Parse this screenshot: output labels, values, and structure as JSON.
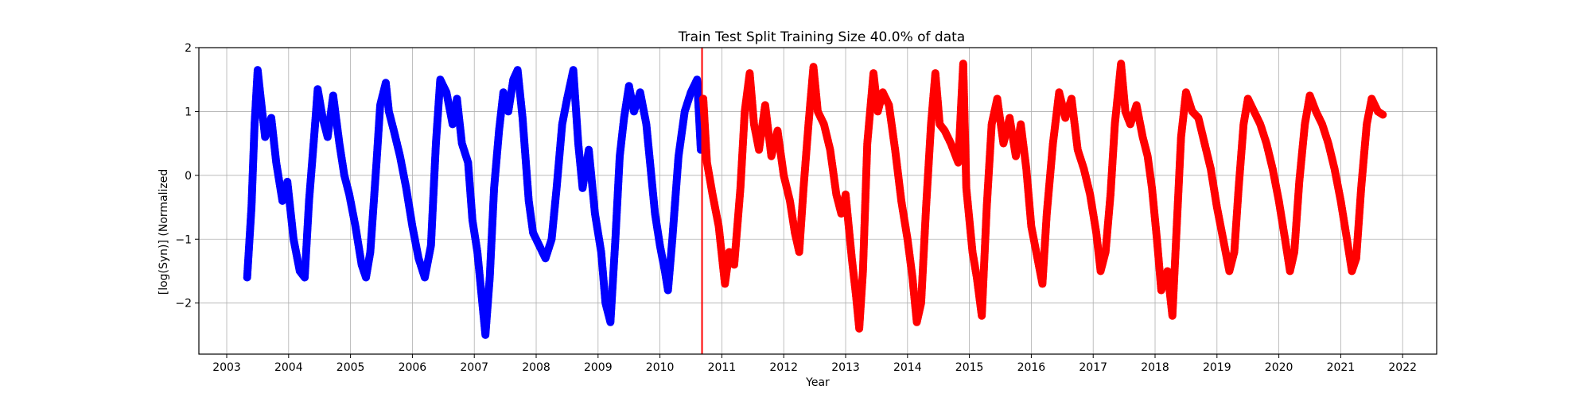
{
  "chart_data": {
    "type": "scatter",
    "title": "Train Test Split Training Size 40.0% of data",
    "xlabel": "Year",
    "ylabel": "[log(Syn)] (Normalized",
    "xlim": [
      2002.55,
      2022.55
    ],
    "ylim": [
      -2.8,
      2.0
    ],
    "x_ticks": [
      2003,
      2004,
      2005,
      2006,
      2007,
      2008,
      2009,
      2010,
      2011,
      2012,
      2013,
      2014,
      2015,
      2016,
      2017,
      2018,
      2019,
      2020,
      2021,
      2022
    ],
    "y_ticks": [
      -2,
      -1,
      0,
      1,
      2
    ],
    "grid": true,
    "split_year": 2010.68,
    "split_line_color": "#ff0000",
    "series": [
      {
        "color": "#0000ff",
        "points": [
          [
            2003.33,
            -1.6
          ],
          [
            2003.4,
            -0.5
          ],
          [
            2003.45,
            0.8
          ],
          [
            2003.5,
            1.65
          ],
          [
            2003.55,
            1.2
          ],
          [
            2003.62,
            0.6
          ],
          [
            2003.72,
            0.9
          ],
          [
            2003.8,
            0.2
          ],
          [
            2003.9,
            -0.4
          ],
          [
            2003.98,
            -0.1
          ],
          [
            2004.08,
            -1.0
          ],
          [
            2004.18,
            -1.5
          ],
          [
            2004.26,
            -1.6
          ],
          [
            2004.33,
            -0.4
          ],
          [
            2004.42,
            0.7
          ],
          [
            2004.47,
            1.35
          ],
          [
            2004.55,
            0.9
          ],
          [
            2004.63,
            0.6
          ],
          [
            2004.72,
            1.25
          ],
          [
            2004.82,
            0.5
          ],
          [
            2004.9,
            0.0
          ],
          [
            2004.98,
            -0.3
          ],
          [
            2005.08,
            -0.8
          ],
          [
            2005.18,
            -1.4
          ],
          [
            2005.25,
            -1.6
          ],
          [
            2005.32,
            -1.2
          ],
          [
            2005.42,
            0.2
          ],
          [
            2005.48,
            1.1
          ],
          [
            2005.57,
            1.45
          ],
          [
            2005.62,
            1.0
          ],
          [
            2005.7,
            0.7
          ],
          [
            2005.8,
            0.3
          ],
          [
            2005.9,
            -0.2
          ],
          [
            2006.0,
            -0.8
          ],
          [
            2006.1,
            -1.3
          ],
          [
            2006.2,
            -1.6
          ],
          [
            2006.3,
            -1.1
          ],
          [
            2006.38,
            0.5
          ],
          [
            2006.45,
            1.5
          ],
          [
            2006.55,
            1.3
          ],
          [
            2006.65,
            0.8
          ],
          [
            2006.72,
            1.2
          ],
          [
            2006.8,
            0.5
          ],
          [
            2006.9,
            0.2
          ],
          [
            2006.97,
            -0.7
          ],
          [
            2007.05,
            -1.2
          ],
          [
            2007.12,
            -1.9
          ],
          [
            2007.18,
            -2.5
          ],
          [
            2007.25,
            -1.6
          ],
          [
            2007.32,
            -0.2
          ],
          [
            2007.4,
            0.7
          ],
          [
            2007.47,
            1.3
          ],
          [
            2007.55,
            1.0
          ],
          [
            2007.63,
            1.5
          ],
          [
            2007.7,
            1.65
          ],
          [
            2007.78,
            0.9
          ],
          [
            2007.88,
            -0.4
          ],
          [
            2007.95,
            -0.9
          ],
          [
            2008.05,
            -1.1
          ],
          [
            2008.15,
            -1.3
          ],
          [
            2008.25,
            -1.0
          ],
          [
            2008.33,
            -0.2
          ],
          [
            2008.42,
            0.8
          ],
          [
            2008.5,
            1.2
          ],
          [
            2008.6,
            1.65
          ],
          [
            2008.68,
            0.5
          ],
          [
            2008.75,
            -0.2
          ],
          [
            2008.85,
            0.4
          ],
          [
            2008.95,
            -0.6
          ],
          [
            2009.05,
            -1.2
          ],
          [
            2009.12,
            -2.0
          ],
          [
            2009.2,
            -2.3
          ],
          [
            2009.28,
            -1.0
          ],
          [
            2009.35,
            0.3
          ],
          [
            2009.42,
            0.9
          ],
          [
            2009.5,
            1.4
          ],
          [
            2009.58,
            1.0
          ],
          [
            2009.68,
            1.3
          ],
          [
            2009.78,
            0.8
          ],
          [
            2009.85,
            0.1
          ],
          [
            2009.92,
            -0.6
          ],
          [
            2010.0,
            -1.1
          ],
          [
            2010.08,
            -1.5
          ],
          [
            2010.13,
            -1.8
          ],
          [
            2010.2,
            -1.0
          ],
          [
            2010.3,
            0.3
          ],
          [
            2010.4,
            1.0
          ],
          [
            2010.5,
            1.3
          ],
          [
            2010.6,
            1.5
          ],
          [
            2010.66,
            0.4
          ]
        ]
      },
      {
        "color": "#ff0000",
        "points": [
          [
            2010.7,
            1.2
          ],
          [
            2010.76,
            0.2
          ],
          [
            2010.85,
            -0.3
          ],
          [
            2010.95,
            -0.8
          ],
          [
            2011.05,
            -1.7
          ],
          [
            2011.12,
            -1.2
          ],
          [
            2011.2,
            -1.4
          ],
          [
            2011.3,
            -0.2
          ],
          [
            2011.37,
            1.0
          ],
          [
            2011.45,
            1.6
          ],
          [
            2011.52,
            0.8
          ],
          [
            2011.6,
            0.4
          ],
          [
            2011.7,
            1.1
          ],
          [
            2011.8,
            0.3
          ],
          [
            2011.9,
            0.7
          ],
          [
            2012.0,
            0.0
          ],
          [
            2012.1,
            -0.4
          ],
          [
            2012.18,
            -0.9
          ],
          [
            2012.25,
            -1.2
          ],
          [
            2012.32,
            -0.2
          ],
          [
            2012.4,
            0.8
          ],
          [
            2012.48,
            1.7
          ],
          [
            2012.55,
            1.0
          ],
          [
            2012.65,
            0.8
          ],
          [
            2012.75,
            0.4
          ],
          [
            2012.85,
            -0.3
          ],
          [
            2012.93,
            -0.6
          ],
          [
            2013.0,
            -0.3
          ],
          [
            2013.1,
            -1.3
          ],
          [
            2013.17,
            -1.9
          ],
          [
            2013.22,
            -2.4
          ],
          [
            2013.28,
            -1.5
          ],
          [
            2013.35,
            0.5
          ],
          [
            2013.45,
            1.6
          ],
          [
            2013.52,
            1.0
          ],
          [
            2013.6,
            1.3
          ],
          [
            2013.7,
            1.1
          ],
          [
            2013.8,
            0.4
          ],
          [
            2013.9,
            -0.4
          ],
          [
            2014.0,
            -1.0
          ],
          [
            2014.08,
            -1.6
          ],
          [
            2014.15,
            -2.3
          ],
          [
            2014.22,
            -2.0
          ],
          [
            2014.3,
            -0.5
          ],
          [
            2014.38,
            0.8
          ],
          [
            2014.45,
            1.6
          ],
          [
            2014.52,
            0.8
          ],
          [
            2014.6,
            0.7
          ],
          [
            2014.7,
            0.5
          ],
          [
            2014.82,
            0.2
          ],
          [
            2014.9,
            1.75
          ],
          [
            2014.95,
            -0.2
          ],
          [
            2015.05,
            -1.2
          ],
          [
            2015.12,
            -1.6
          ],
          [
            2015.2,
            -2.2
          ],
          [
            2015.28,
            -0.5
          ],
          [
            2015.36,
            0.8
          ],
          [
            2015.45,
            1.2
          ],
          [
            2015.55,
            0.5
          ],
          [
            2015.65,
            0.9
          ],
          [
            2015.75,
            0.3
          ],
          [
            2015.83,
            0.8
          ],
          [
            2015.92,
            0.1
          ],
          [
            2016.0,
            -0.8
          ],
          [
            2016.1,
            -1.3
          ],
          [
            2016.18,
            -1.7
          ],
          [
            2016.25,
            -0.6
          ],
          [
            2016.35,
            0.5
          ],
          [
            2016.45,
            1.3
          ],
          [
            2016.55,
            0.9
          ],
          [
            2016.65,
            1.2
          ],
          [
            2016.75,
            0.4
          ],
          [
            2016.85,
            0.1
          ],
          [
            2016.95,
            -0.3
          ],
          [
            2017.05,
            -0.9
          ],
          [
            2017.12,
            -1.5
          ],
          [
            2017.2,
            -1.2
          ],
          [
            2017.28,
            -0.3
          ],
          [
            2017.35,
            0.8
          ],
          [
            2017.45,
            1.75
          ],
          [
            2017.52,
            1.0
          ],
          [
            2017.6,
            0.8
          ],
          [
            2017.7,
            1.1
          ],
          [
            2017.8,
            0.6
          ],
          [
            2017.88,
            0.3
          ],
          [
            2017.95,
            -0.2
          ],
          [
            2018.03,
            -1.0
          ],
          [
            2018.1,
            -1.8
          ],
          [
            2018.2,
            -1.5
          ],
          [
            2018.28,
            -2.2
          ],
          [
            2018.35,
            -0.8
          ],
          [
            2018.42,
            0.6
          ],
          [
            2018.5,
            1.3
          ],
          [
            2018.6,
            1.0
          ],
          [
            2018.7,
            0.9
          ],
          [
            2018.8,
            0.5
          ],
          [
            2018.9,
            0.1
          ],
          [
            2019.0,
            -0.5
          ],
          [
            2019.1,
            -1.0
          ],
          [
            2019.2,
            -1.5
          ],
          [
            2019.28,
            -1.2
          ],
          [
            2019.35,
            -0.2
          ],
          [
            2019.43,
            0.8
          ],
          [
            2019.5,
            1.2
          ],
          [
            2019.6,
            1.0
          ],
          [
            2019.7,
            0.8
          ],
          [
            2019.8,
            0.5
          ],
          [
            2019.9,
            0.1
          ],
          [
            2020.0,
            -0.4
          ],
          [
            2020.1,
            -1.0
          ],
          [
            2020.18,
            -1.5
          ],
          [
            2020.25,
            -1.2
          ],
          [
            2020.33,
            -0.1
          ],
          [
            2020.42,
            0.8
          ],
          [
            2020.5,
            1.25
          ],
          [
            2020.6,
            1.0
          ],
          [
            2020.7,
            0.8
          ],
          [
            2020.8,
            0.5
          ],
          [
            2020.9,
            0.1
          ],
          [
            2021.0,
            -0.4
          ],
          [
            2021.1,
            -1.0
          ],
          [
            2021.18,
            -1.5
          ],
          [
            2021.25,
            -1.3
          ],
          [
            2021.33,
            -0.2
          ],
          [
            2021.42,
            0.8
          ],
          [
            2021.5,
            1.2
          ],
          [
            2021.6,
            1.0
          ],
          [
            2021.68,
            0.95
          ]
        ]
      }
    ]
  }
}
